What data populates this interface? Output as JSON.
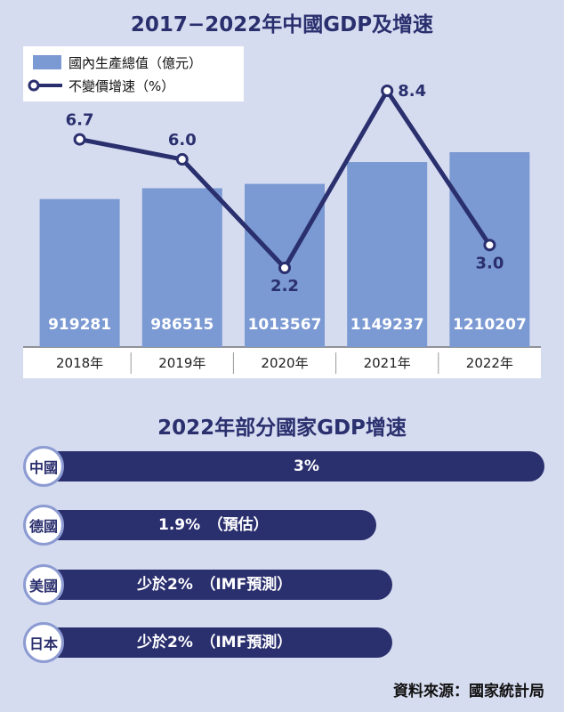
{
  "page": {
    "title": "2017−2022年中國GDP及增速",
    "subtitle": "2022年部分國家GDP增速",
    "source": "資料來源：國家統計局"
  },
  "colors": {
    "background": "#d6dcf0",
    "bar": "#7b99d2",
    "line": "#2a2f6e",
    "axis_band": "#ffffff",
    "hbar": "#2a2f6e",
    "circle_border": "#8c9bd2"
  },
  "chart_data": [
    {
      "type": "bar",
      "categories": [
        "2018年",
        "2019年",
        "2020年",
        "2021年",
        "2022年"
      ],
      "series": [
        {
          "name": "國內生產總值（億元）",
          "type": "bar",
          "values": [
            919281,
            986515,
            1013567,
            1149237,
            1210207
          ]
        },
        {
          "name": "不變價增速（%）",
          "type": "line",
          "values": [
            6.7,
            6.0,
            2.2,
            8.4,
            3.0
          ]
        }
      ],
      "title": "2017−2022年中國GDP及增速",
      "legend": "top-left"
    },
    {
      "type": "bar",
      "orientation": "horizontal",
      "title": "2022年部分國家GDP增速",
      "categories": [
        "中國",
        "德國",
        "美國",
        "日本"
      ],
      "values": [
        3,
        1.9,
        2,
        2
      ],
      "labels": [
        "3%",
        "1.9%　（預估）",
        "少於2%　（IMF預測）",
        "少於2%　（IMF預測）"
      ]
    }
  ]
}
